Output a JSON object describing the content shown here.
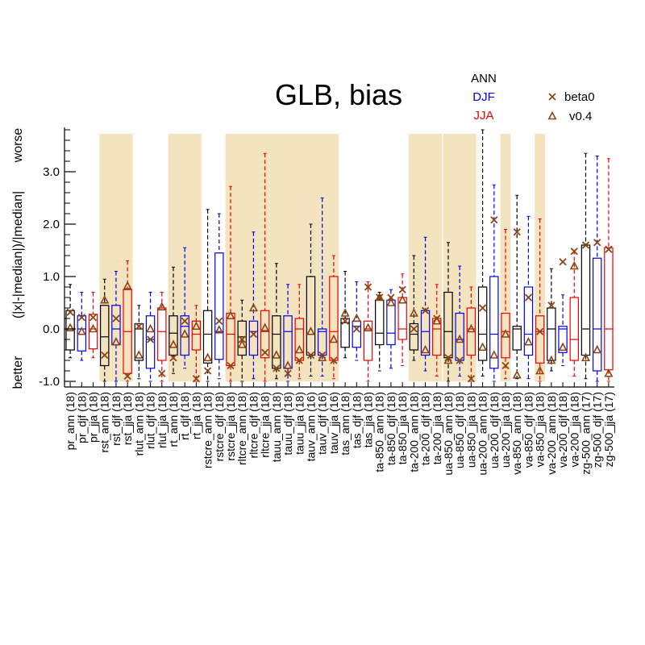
{
  "chart_data": {
    "type": "boxplot",
    "title": "GLB, bias",
    "ylabel": "(|x|-|median|)/|median|",
    "ylabel_top": "worse",
    "ylabel_bottom": "better",
    "ylim": [
      -1.0,
      3.8
    ],
    "yticks": [
      -1.0,
      0.0,
      1.0,
      2.0,
      3.0
    ],
    "ytick_labels": [
      "-1.0",
      "0.0",
      "1.0",
      "2.0",
      "3.0"
    ],
    "season_legend": [
      {
        "label": "ANN",
        "color": "#000000"
      },
      {
        "label": "DJF",
        "color": "#0000ee"
      },
      {
        "label": "JJA",
        "color": "#ee0000"
      }
    ],
    "marker_legend": [
      {
        "label": "beta0",
        "marker": "x",
        "color": "#8b4513"
      },
      {
        "label": "v0.4",
        "marker": "triangle",
        "color": "#8b4513"
      }
    ],
    "shaded_groups": [
      [
        "rst_ann (18)",
        "rst_jja (18)"
      ],
      [
        "rt_ann (18)",
        "rt_jja (18)"
      ],
      [
        "rstcre_jja (18)",
        "tauv_jja (16)"
      ],
      [
        "ta-200_ann (18)",
        "ta-200_jja (18)"
      ],
      [
        "ua-850_ann (18)",
        "ua-850_jja (18)"
      ],
      [
        "ua-200_jja (18)",
        "ua-200_jja (18)"
      ],
      [
        "va-850_jja (18)",
        "va-850_jja (18)"
      ]
    ],
    "categories": [
      {
        "label": "pr_ann (18)",
        "season": "ANN",
        "min": -0.55,
        "q1": -0.4,
        "median": 0.0,
        "q3": 0.35,
        "max": 0.85,
        "beta0": 0.32,
        "v04": 0.02
      },
      {
        "label": "pr_djf (18)",
        "season": "DJF",
        "min": -0.6,
        "q1": -0.42,
        "median": 0.0,
        "q3": 0.25,
        "max": 0.7,
        "beta0": 0.22,
        "v04": -0.05
      },
      {
        "label": "pr_jja (18)",
        "season": "JJA",
        "min": -0.55,
        "q1": -0.38,
        "median": 0.0,
        "q3": 0.28,
        "max": 0.7,
        "beta0": 0.22,
        "v04": 0.0
      },
      {
        "label": "rst_ann (18)",
        "season": "ANN",
        "min": -1.0,
        "q1": -0.7,
        "median": -0.15,
        "q3": 0.45,
        "max": 0.95,
        "beta0": -0.5,
        "v04": 0.55
      },
      {
        "label": "rst_djf (18)",
        "season": "DJF",
        "min": -1.0,
        "q1": -0.3,
        "median": 0.0,
        "q3": 0.45,
        "max": 1.1,
        "beta0": 0.2,
        "v04": -0.25
      },
      {
        "label": "rst_jja (18)",
        "season": "JJA",
        "min": -1.0,
        "q1": -0.85,
        "median": -0.05,
        "q3": 0.75,
        "max": 1.3,
        "beta0": -0.9,
        "v04": 0.82
      },
      {
        "label": "rlut_ann (18)",
        "season": "ANN",
        "min": -0.95,
        "q1": -0.6,
        "median": 0.0,
        "q3": 0.1,
        "max": 0.45,
        "beta0": 0.05,
        "v04": -0.5
      },
      {
        "label": "rlut_djf (18)",
        "season": "DJF",
        "min": -1.0,
        "q1": -0.75,
        "median": -0.2,
        "q3": 0.25,
        "max": 0.7,
        "beta0": -0.2,
        "v04": 0.0
      },
      {
        "label": "rlut_jja (18)",
        "season": "JJA",
        "min": -1.0,
        "q1": -0.6,
        "median": -0.05,
        "q3": 0.4,
        "max": 0.7,
        "beta0": -0.85,
        "v04": 0.42
      },
      {
        "label": "rt_ann (18)",
        "season": "ANN",
        "min": -0.85,
        "q1": -0.5,
        "median": -0.08,
        "q3": 0.25,
        "max": 1.18,
        "beta0": -0.55,
        "v04": -0.3
      },
      {
        "label": "rt_djf (18)",
        "season": "DJF",
        "min": -0.75,
        "q1": -0.5,
        "median": 0.05,
        "q3": 0.25,
        "max": 1.55,
        "beta0": 0.15,
        "v04": -0.1
      },
      {
        "label": "rt_jja (18)",
        "season": "JJA",
        "min": -1.0,
        "q1": -0.4,
        "median": -0.1,
        "q3": 0.15,
        "max": 0.45,
        "beta0": -0.95,
        "v04": 0.05
      },
      {
        "label": "rstcre_ann (18)",
        "season": "ANN",
        "min": -1.0,
        "q1": -0.65,
        "median": -0.1,
        "q3": 0.35,
        "max": 2.28,
        "beta0": -0.8,
        "v04": -0.55
      },
      {
        "label": "rstcre_djf (18)",
        "season": "DJF",
        "min": -0.95,
        "q1": -0.58,
        "median": -0.05,
        "q3": 1.45,
        "max": 2.2,
        "beta0": 0.15,
        "v04": -0.02
      },
      {
        "label": "rstcre_jja (18)",
        "season": "JJA",
        "min": -1.0,
        "q1": -0.7,
        "median": -0.1,
        "q3": 0.3,
        "max": 2.72,
        "beta0": -0.7,
        "v04": 0.25
      },
      {
        "label": "rltcre_ann (18)",
        "season": "ANN",
        "min": -1.0,
        "q1": -0.5,
        "median": -0.15,
        "q3": 0.15,
        "max": 0.55,
        "beta0": -0.2,
        "v04": -0.3
      },
      {
        "label": "rltcre_djf (18)",
        "season": "DJF",
        "min": -0.95,
        "q1": -0.5,
        "median": -0.05,
        "q3": 0.15,
        "max": 1.85,
        "beta0": -0.1,
        "v04": 0.4
      },
      {
        "label": "rltcre_jja (18)",
        "season": "JJA",
        "min": -1.0,
        "q1": -0.55,
        "median": -0.05,
        "q3": 0.35,
        "max": 3.35,
        "beta0": -0.45,
        "v04": 0.02
      },
      {
        "label": "tauu_ann (18)",
        "season": "ANN",
        "min": -0.95,
        "q1": -0.75,
        "median": -0.1,
        "q3": 0.25,
        "max": 1.25,
        "beta0": -0.75,
        "v04": -0.5
      },
      {
        "label": "tauu_djf (18)",
        "season": "DJF",
        "min": -1.0,
        "q1": -0.75,
        "median": -0.05,
        "q3": 0.25,
        "max": 0.85,
        "beta0": -0.85,
        "v04": -0.7
      },
      {
        "label": "tauu_jja (18)",
        "season": "JJA",
        "min": -0.95,
        "q1": -0.6,
        "median": 0.0,
        "q3": 0.2,
        "max": 0.85,
        "beta0": -0.6,
        "v04": -0.4
      },
      {
        "label": "tauv_ann (16)",
        "season": "ANN",
        "min": -0.9,
        "q1": -0.5,
        "median": -0.1,
        "q3": 1.0,
        "max": 2.0,
        "beta0": -0.5,
        "v04": -0.05
      },
      {
        "label": "tauv_djf (16)",
        "season": "DJF",
        "min": -0.9,
        "q1": -0.5,
        "median": -0.05,
        "q3": 0.0,
        "max": 2.5,
        "beta0": -0.5,
        "v04": -0.55
      },
      {
        "label": "tauv_jja (16)",
        "season": "JJA",
        "min": -0.95,
        "q1": -0.6,
        "median": -0.05,
        "q3": 1.0,
        "max": 1.4,
        "beta0": -0.6,
        "v04": -0.2
      },
      {
        "label": "tas_ann (18)",
        "season": "ANN",
        "min": -0.55,
        "q1": -0.35,
        "median": 0.12,
        "q3": 0.2,
        "max": 1.1,
        "beta0": 0.15,
        "v04": 0.3
      },
      {
        "label": "tas_djf (18)",
        "season": "DJF",
        "min": -0.6,
        "q1": -0.35,
        "median": 0.05,
        "q3": 0.15,
        "max": 0.9,
        "beta0": 0.0,
        "v04": 0.2
      },
      {
        "label": "tas_jja (18)",
        "season": "JJA",
        "min": -1.0,
        "q1": -0.6,
        "median": 0.0,
        "q3": 0.15,
        "max": 0.9,
        "beta0": 0.8,
        "v04": 0.02
      },
      {
        "label": "ta-850_ann (18)",
        "season": "ANN",
        "min": -0.8,
        "q1": -0.3,
        "median": -0.08,
        "q3": 0.55,
        "max": 0.7,
        "beta0": 0.6,
        "v04": 0.6
      },
      {
        "label": "ta-850_djf (18)",
        "season": "DJF",
        "min": -0.75,
        "q1": -0.3,
        "median": -0.08,
        "q3": 0.55,
        "max": 0.75,
        "beta0": 0.6,
        "v04": 0.5
      },
      {
        "label": "ta-850_jja (18)",
        "season": "JJA",
        "min": -0.7,
        "q1": -0.2,
        "median": 0.0,
        "q3": 0.6,
        "max": 1.05,
        "beta0": 0.75,
        "v04": 0.55
      },
      {
        "label": "ta-200_ann (18)",
        "season": "ANN",
        "min": -0.6,
        "q1": -0.4,
        "median": -0.1,
        "q3": 0.1,
        "max": 1.4,
        "beta0": 0.0,
        "v04": 0.3
      },
      {
        "label": "ta-200_djf (18)",
        "season": "DJF",
        "min": -0.8,
        "q1": -0.5,
        "median": -0.05,
        "q3": 0.35,
        "max": 1.75,
        "beta0": 0.35,
        "v04": -0.4
      },
      {
        "label": "ta-200_jja (18)",
        "season": "JJA",
        "min": -0.9,
        "q1": -0.5,
        "median": 0.0,
        "q3": 0.2,
        "max": 0.85,
        "beta0": 0.2,
        "v04": 0.15
      },
      {
        "label": "ua-850_ann (18)",
        "season": "ANN",
        "min": -1.0,
        "q1": -0.55,
        "median": -0.05,
        "q3": 0.7,
        "max": 1.65,
        "beta0": -0.55,
        "v04": -0.6
      },
      {
        "label": "ua-850_djf (18)",
        "season": "DJF",
        "min": -0.9,
        "q1": -0.6,
        "median": -0.2,
        "q3": 0.3,
        "max": 1.2,
        "beta0": -0.6,
        "v04": -0.2
      },
      {
        "label": "ua-850_jja (18)",
        "season": "JJA",
        "min": -1.0,
        "q1": -0.5,
        "median": 0.0,
        "q3": 0.4,
        "max": 0.8,
        "beta0": -0.95,
        "v04": 0.0
      },
      {
        "label": "ua-200_ann (18)",
        "season": "ANN",
        "min": -0.9,
        "q1": -0.6,
        "median": -0.1,
        "q3": 0.8,
        "max": 3.8,
        "beta0": 0.4,
        "v04": -0.35
      },
      {
        "label": "ua-200_djf (18)",
        "season": "DJF",
        "min": -1.0,
        "q1": -0.75,
        "median": -0.1,
        "q3": 1.0,
        "max": 2.75,
        "beta0": 2.08,
        "v04": -0.5
      },
      {
        "label": "ua-200_jja (18)",
        "season": "JJA",
        "min": -0.95,
        "q1": -0.55,
        "median": -0.05,
        "q3": 0.3,
        "max": 1.9,
        "beta0": -0.7,
        "v04": -0.1
      },
      {
        "label": "va-850_ann (18)",
        "season": "ANN",
        "min": -0.95,
        "q1": -0.4,
        "median": 0.0,
        "q3": 0.05,
        "max": 2.55,
        "beta0": 1.85,
        "v04": -0.88
      },
      {
        "label": "va-850_djf (18)",
        "season": "DJF",
        "min": -0.95,
        "q1": -0.5,
        "median": -0.1,
        "q3": 0.8,
        "max": 2.15,
        "beta0": 0.6,
        "v04": -0.25
      },
      {
        "label": "va-850_jja (18)",
        "season": "JJA",
        "min": -1.0,
        "q1": -0.65,
        "median": -0.05,
        "q3": 0.25,
        "max": 2.1,
        "beta0": -0.05,
        "v04": -0.8
      },
      {
        "label": "va-200_ann (18)",
        "season": "ANN",
        "min": -0.8,
        "q1": -0.6,
        "median": 0.0,
        "q3": 0.4,
        "max": 1.15,
        "beta0": 0.45,
        "v04": -0.6
      },
      {
        "label": "va-200_djf (18)",
        "season": "DJF",
        "min": -0.7,
        "q1": -0.45,
        "median": 0.0,
        "q3": 0.05,
        "max": 0.65,
        "beta0": 1.28,
        "v04": -0.35
      },
      {
        "label": "va-200_jja (18)",
        "season": "JJA",
        "min": -0.9,
        "q1": -0.6,
        "median": -0.2,
        "q3": 0.6,
        "max": 1.5,
        "beta0": 1.48,
        "v04": 1.2
      },
      {
        "label": "zg-500_ann (17)",
        "season": "ANN",
        "min": -0.95,
        "q1": -0.5,
        "median": 0.0,
        "q3": 1.6,
        "max": 3.35,
        "beta0": 1.6,
        "v04": -0.55
      },
      {
        "label": "zg-500_djf (17)",
        "season": "DJF",
        "min": -1.0,
        "q1": -0.8,
        "median": 0.0,
        "q3": 1.35,
        "max": 3.3,
        "beta0": 1.65,
        "v04": -0.4
      },
      {
        "label": "zg-500_jja (17)",
        "season": "JJA",
        "min": -1.0,
        "q1": -0.78,
        "median": 0.0,
        "q3": 1.55,
        "max": 3.25,
        "beta0": 1.52,
        "v04": -0.85
      }
    ]
  }
}
